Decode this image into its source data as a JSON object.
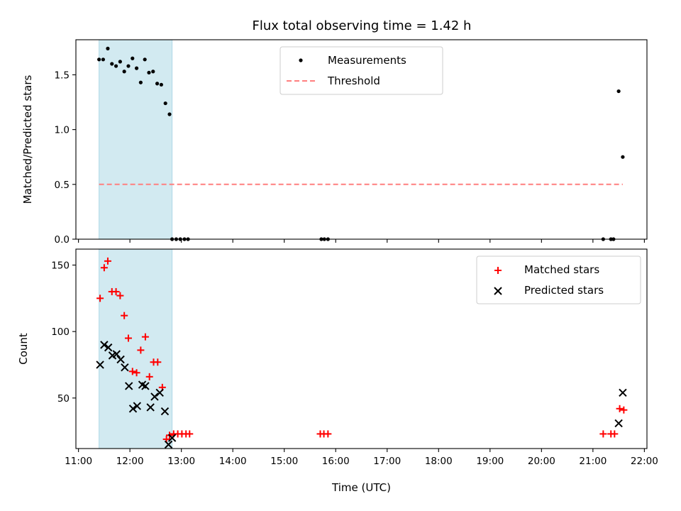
{
  "title": "Flux total observing time = 1.42 h",
  "chart_data": [
    {
      "type": "scatter",
      "ylabel": "Matched/Predicted stars",
      "ylim": [
        0,
        1.82
      ],
      "yticks": [
        0.0,
        0.5,
        1.0,
        1.5
      ],
      "ytick_labels": [
        "0.0",
        "0.5",
        "1.0",
        "1.5"
      ],
      "xlim": [
        10.95,
        22.05
      ],
      "highlight_span": {
        "x0": 11.4,
        "x1": 12.82,
        "color": "#add8e6"
      },
      "legend": "top-center",
      "series": [
        {
          "name": "Measurements",
          "marker": "dot",
          "color": "#000000",
          "x": [
            11.4,
            11.48,
            11.57,
            11.65,
            11.73,
            11.81,
            11.89,
            11.97,
            12.05,
            12.13,
            12.21,
            12.29,
            12.37,
            12.45,
            12.53,
            12.61,
            12.69,
            12.77,
            12.82,
            12.9,
            12.98,
            13.06,
            13.13,
            15.72,
            15.78,
            15.85,
            21.2,
            21.35,
            21.4,
            21.5,
            21.58
          ],
          "y": [
            1.64,
            1.64,
            1.74,
            1.6,
            1.58,
            1.62,
            1.53,
            1.58,
            1.65,
            1.56,
            1.43,
            1.64,
            1.52,
            1.53,
            1.42,
            1.41,
            1.24,
            1.14,
            0.0,
            0.0,
            0.0,
            0.0,
            0.0,
            0.0,
            0.0,
            0.0,
            0.0,
            0.0,
            0.0,
            1.35,
            0.75
          ]
        },
        {
          "name": "Threshold",
          "marker": "dashed-line",
          "color": "#ff7f7f",
          "x": [
            11.4,
            21.58
          ],
          "y": [
            0.5,
            0.5
          ]
        }
      ]
    },
    {
      "type": "scatter",
      "ylabel": "Count",
      "xlabel": "Time (UTC)",
      "ylim": [
        12,
        162
      ],
      "yticks": [
        50,
        100,
        150
      ],
      "ytick_labels": [
        "50",
        "100",
        "150"
      ],
      "xlim": [
        10.95,
        22.05
      ],
      "xticks": [
        11,
        12,
        13,
        14,
        15,
        16,
        17,
        18,
        19,
        20,
        21,
        22
      ],
      "xtick_labels": [
        "11:00",
        "12:00",
        "13:00",
        "14:00",
        "15:00",
        "16:00",
        "17:00",
        "18:00",
        "19:00",
        "20:00",
        "21:00",
        "22:00"
      ],
      "highlight_span": {
        "x0": 11.4,
        "x1": 12.82,
        "color": "#add8e6"
      },
      "legend": "top-right",
      "series": [
        {
          "name": "Matched stars",
          "marker": "plus",
          "color": "#ff0000",
          "x": [
            11.42,
            11.5,
            11.57,
            11.65,
            11.73,
            11.81,
            11.89,
            11.97,
            12.05,
            12.13,
            12.21,
            12.3,
            12.38,
            12.46,
            12.54,
            12.63,
            12.71,
            12.77,
            12.85,
            12.93,
            13.01,
            13.09,
            13.16,
            15.7,
            15.77,
            15.85,
            21.2,
            21.35,
            21.42,
            21.52,
            21.6
          ],
          "y": [
            125,
            148,
            153,
            130,
            130,
            127,
            112,
            95,
            70,
            69,
            86,
            96,
            66,
            77,
            77,
            58,
            19,
            22,
            23,
            23,
            23,
            23,
            23,
            23,
            23,
            23,
            23,
            23,
            23,
            42,
            41
          ]
        },
        {
          "name": "Predicted stars",
          "marker": "x",
          "color": "#000000",
          "x": [
            11.42,
            11.5,
            11.58,
            11.66,
            11.74,
            11.82,
            11.9,
            11.98,
            12.06,
            12.14,
            12.24,
            12.3,
            12.4,
            12.48,
            12.58,
            12.68,
            12.75,
            12.82,
            21.5,
            21.58
          ],
          "y": [
            75,
            90,
            88,
            82,
            83,
            79,
            73,
            59,
            42,
            44,
            60,
            59,
            43,
            51,
            54,
            40,
            15,
            20,
            31,
            54
          ]
        }
      ]
    }
  ]
}
